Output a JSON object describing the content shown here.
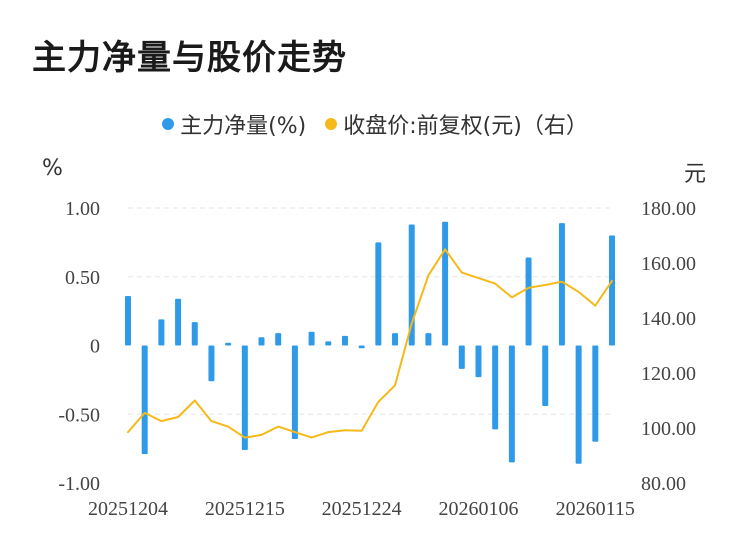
{
  "title": "主力净量与股价走势",
  "legend": {
    "series1": "主力净量(%)",
    "series2": "收盘价:前复权(元)（右）"
  },
  "units": {
    "left": "%",
    "right": "元"
  },
  "colors": {
    "bar": "#2f9be8",
    "line": "#f5b919",
    "grid": "#e6e6e6"
  },
  "chart_data": {
    "type": "bar+line",
    "title": "主力净量与股价走势",
    "x_tick_labels": [
      "20251204",
      "20251215",
      "20251224",
      "20260106",
      "20260115"
    ],
    "y_left": {
      "label": "%",
      "ylim": [
        -1.0,
        1.0
      ],
      "ticks": [
        "1.00",
        "0.50",
        "0",
        "-0.50",
        "-1.00"
      ]
    },
    "y_right": {
      "label": "元",
      "ylim": [
        80,
        180
      ],
      "ticks": [
        "180.00",
        "160.00",
        "140.00",
        "120.00",
        "100.00",
        "80.00"
      ]
    },
    "grid": true,
    "legend_position": "top-center",
    "series": [
      {
        "name": "主力净量(%)",
        "type": "bar",
        "axis": "left",
        "values": [
          0.36,
          -0.79,
          0.19,
          0.34,
          0.17,
          -0.26,
          0.02,
          -0.76,
          0.06,
          0.09,
          -0.68,
          0.1,
          0.03,
          0.07,
          -0.02,
          0.75,
          0.09,
          0.88,
          0.09,
          0.9,
          -0.17,
          -0.23,
          -0.61,
          -0.85,
          0.64,
          -0.44,
          0.89,
          -0.86,
          -0.7,
          0.8
        ]
      },
      {
        "name": "收盘价:前复权(元)（右）",
        "type": "line",
        "axis": "right",
        "values": [
          98.5,
          105.5,
          102.5,
          104.0,
          110.0,
          102.5,
          100.5,
          96.5,
          97.5,
          100.5,
          98.5,
          96.5,
          98.5,
          99.2,
          99.0,
          109.5,
          115.5,
          138.0,
          155.5,
          165.0,
          156.5,
          154.5,
          152.5,
          147.5,
          151.0,
          152.0,
          153.2,
          149.5,
          144.5,
          153.5
        ]
      }
    ]
  }
}
